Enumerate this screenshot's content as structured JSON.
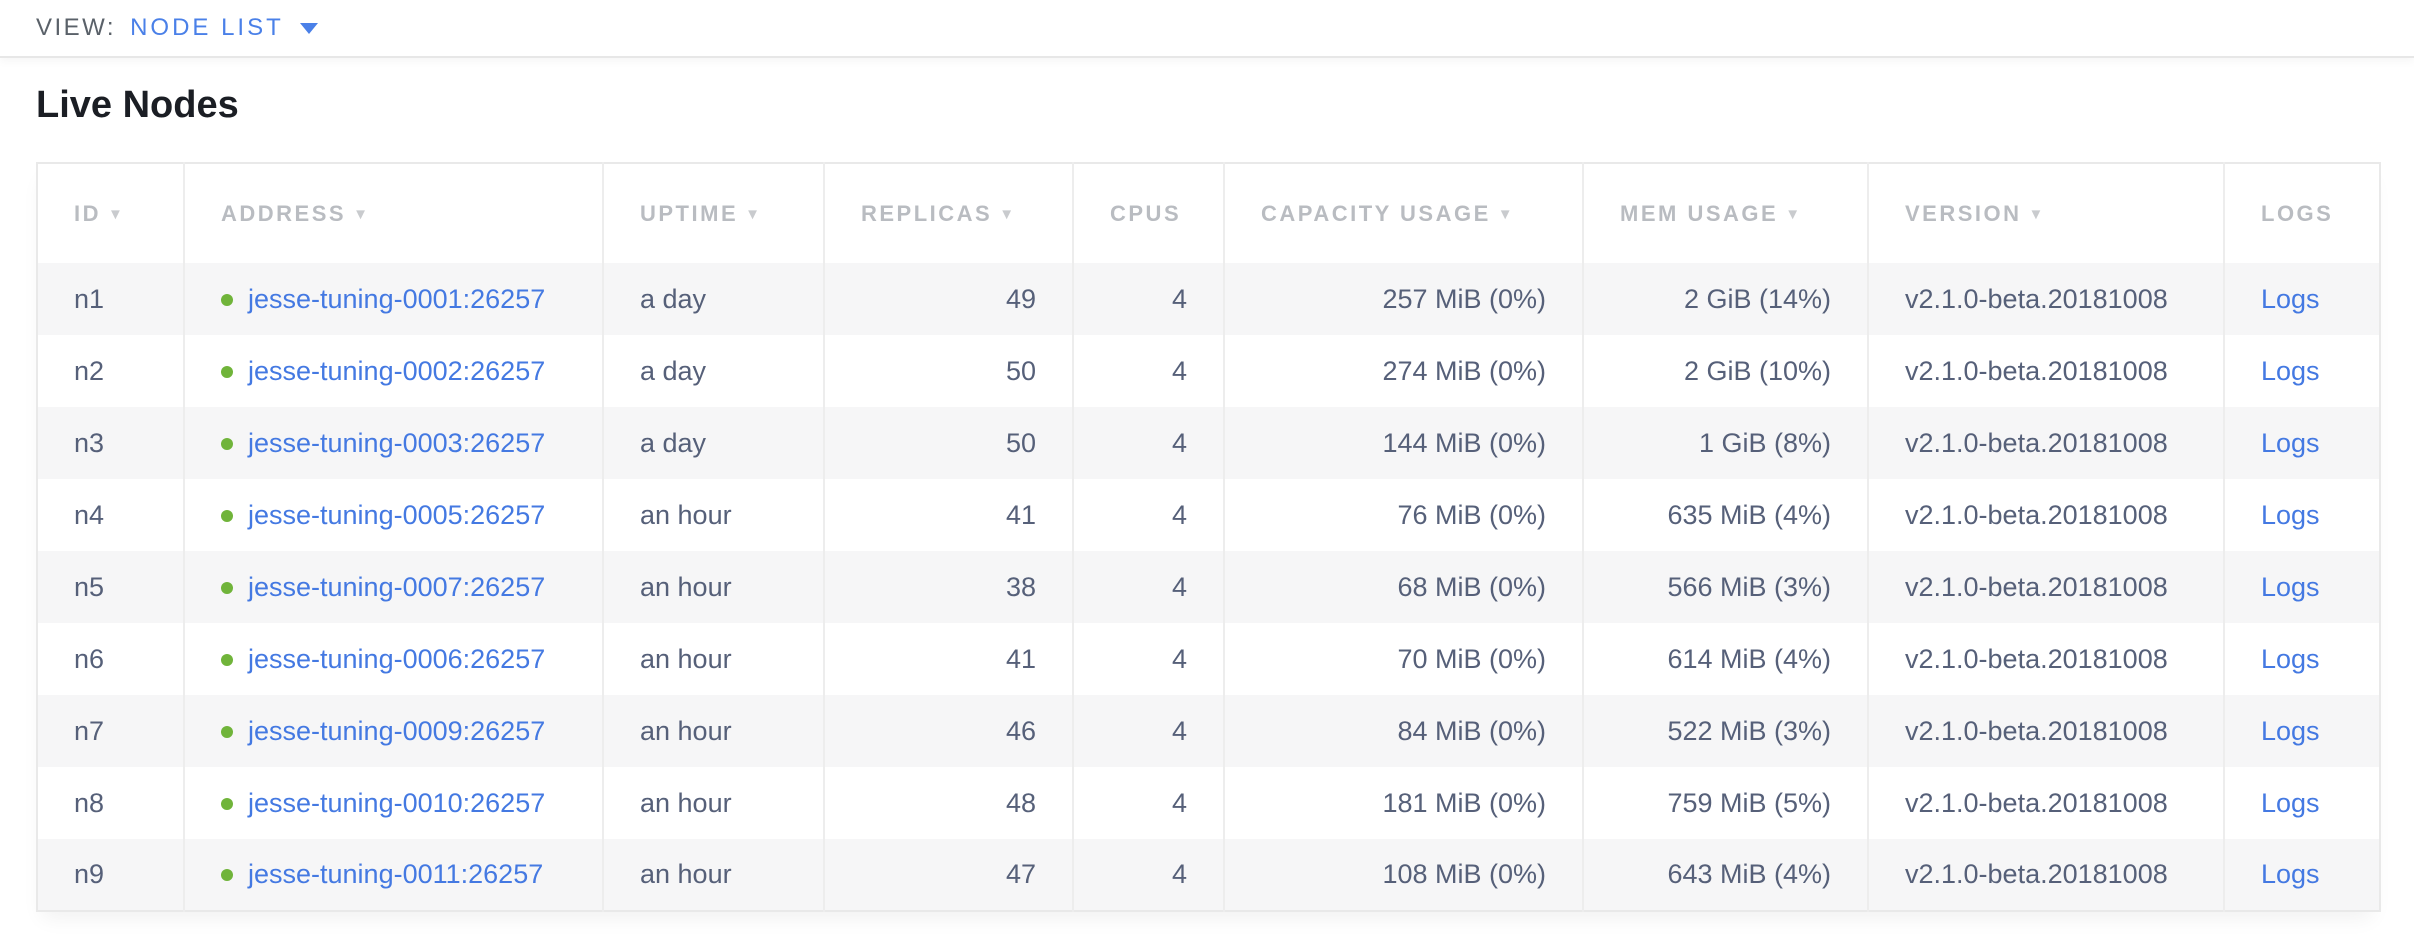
{
  "view_bar": {
    "label": "VIEW:",
    "selected": "NODE LIST"
  },
  "page_title": "Live Nodes",
  "table": {
    "sort_icon": "▼",
    "columns": [
      {
        "key": "id",
        "label": "ID",
        "sortable": true
      },
      {
        "key": "address",
        "label": "ADDRESS",
        "sortable": true
      },
      {
        "key": "uptime",
        "label": "UPTIME",
        "sortable": true
      },
      {
        "key": "replicas",
        "label": "REPLICAS",
        "sortable": true
      },
      {
        "key": "cpus",
        "label": "CPUS",
        "sortable": false
      },
      {
        "key": "capacity",
        "label": "CAPACITY USAGE",
        "sortable": true
      },
      {
        "key": "mem",
        "label": "MEM USAGE",
        "sortable": true
      },
      {
        "key": "version",
        "label": "VERSION",
        "sortable": true
      },
      {
        "key": "logs",
        "label": "LOGS",
        "sortable": false
      }
    ],
    "rows": [
      {
        "id": "n1",
        "status": "healthy",
        "address": "jesse-tuning-0001:26257",
        "uptime": "a day",
        "replicas": "49",
        "cpus": "4",
        "capacity_usage": "257 MiB (0%)",
        "mem_usage": "2 GiB (14%)",
        "version": "v2.1.0-beta.20181008",
        "logs_label": "Logs"
      },
      {
        "id": "n2",
        "status": "healthy",
        "address": "jesse-tuning-0002:26257",
        "uptime": "a day",
        "replicas": "50",
        "cpus": "4",
        "capacity_usage": "274 MiB (0%)",
        "mem_usage": "2 GiB (10%)",
        "version": "v2.1.0-beta.20181008",
        "logs_label": "Logs"
      },
      {
        "id": "n3",
        "status": "healthy",
        "address": "jesse-tuning-0003:26257",
        "uptime": "a day",
        "replicas": "50",
        "cpus": "4",
        "capacity_usage": "144 MiB (0%)",
        "mem_usage": "1 GiB (8%)",
        "version": "v2.1.0-beta.20181008",
        "logs_label": "Logs"
      },
      {
        "id": "n4",
        "status": "healthy",
        "address": "jesse-tuning-0005:26257",
        "uptime": "an hour",
        "replicas": "41",
        "cpus": "4",
        "capacity_usage": "76 MiB (0%)",
        "mem_usage": "635 MiB (4%)",
        "version": "v2.1.0-beta.20181008",
        "logs_label": "Logs"
      },
      {
        "id": "n5",
        "status": "healthy",
        "address": "jesse-tuning-0007:26257",
        "uptime": "an hour",
        "replicas": "38",
        "cpus": "4",
        "capacity_usage": "68 MiB (0%)",
        "mem_usage": "566 MiB (3%)",
        "version": "v2.1.0-beta.20181008",
        "logs_label": "Logs"
      },
      {
        "id": "n6",
        "status": "healthy",
        "address": "jesse-tuning-0006:26257",
        "uptime": "an hour",
        "replicas": "41",
        "cpus": "4",
        "capacity_usage": "70 MiB (0%)",
        "mem_usage": "614 MiB (4%)",
        "version": "v2.1.0-beta.20181008",
        "logs_label": "Logs"
      },
      {
        "id": "n7",
        "status": "healthy",
        "address": "jesse-tuning-0009:26257",
        "uptime": "an hour",
        "replicas": "46",
        "cpus": "4",
        "capacity_usage": "84 MiB (0%)",
        "mem_usage": "522 MiB (3%)",
        "version": "v2.1.0-beta.20181008",
        "logs_label": "Logs"
      },
      {
        "id": "n8",
        "status": "healthy",
        "address": "jesse-tuning-0010:26257",
        "uptime": "an hour",
        "replicas": "48",
        "cpus": "4",
        "capacity_usage": "181 MiB (0%)",
        "mem_usage": "759 MiB (5%)",
        "version": "v2.1.0-beta.20181008",
        "logs_label": "Logs"
      },
      {
        "id": "n9",
        "status": "healthy",
        "address": "jesse-tuning-0011:26257",
        "uptime": "an hour",
        "replicas": "47",
        "cpus": "4",
        "capacity_usage": "108 MiB (0%)",
        "mem_usage": "643 MiB (4%)",
        "version": "v2.1.0-beta.20181008",
        "logs_label": "Logs"
      }
    ]
  },
  "colors": {
    "link_blue": "#4479e2",
    "dropdown_blue": "#4a80e8",
    "status_green": "#70b43a",
    "header_gray": "#b9bcc1",
    "body_text": "#566079",
    "row_stripe": "#f6f6f7",
    "border": "#e9e9e9"
  }
}
